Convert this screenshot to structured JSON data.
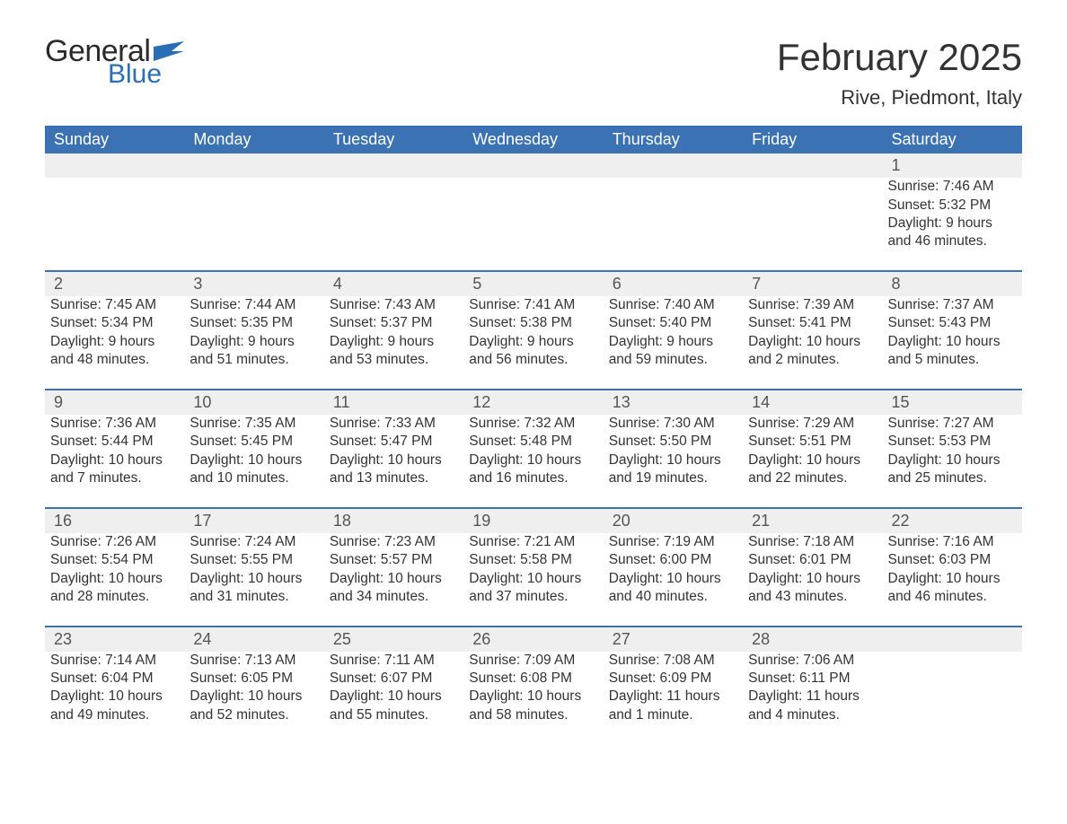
{
  "brand": {
    "word1": "General",
    "word2": "Blue",
    "flag_color": "#2a6fb5"
  },
  "title": "February 2025",
  "location": "Rive, Piedmont, Italy",
  "colors": {
    "header_bg": "#3b72b3",
    "header_text": "#ffffff",
    "daynum_bg": "#efefef",
    "row_divider": "#3b72b3",
    "body_text": "#333333",
    "page_bg": "#ffffff"
  },
  "typography": {
    "title_fontsize": 42,
    "location_fontsize": 22,
    "dayheader_fontsize": 18,
    "cell_fontsize": 15.5
  },
  "calendar": {
    "type": "table",
    "day_headers": [
      "Sunday",
      "Monday",
      "Tuesday",
      "Wednesday",
      "Thursday",
      "Friday",
      "Saturday"
    ],
    "weeks": [
      [
        null,
        null,
        null,
        null,
        null,
        null,
        {
          "n": "1",
          "sunrise": "7:46 AM",
          "sunset": "5:32 PM",
          "daylight": "9 hours and 46 minutes."
        }
      ],
      [
        {
          "n": "2",
          "sunrise": "7:45 AM",
          "sunset": "5:34 PM",
          "daylight": "9 hours and 48 minutes."
        },
        {
          "n": "3",
          "sunrise": "7:44 AM",
          "sunset": "5:35 PM",
          "daylight": "9 hours and 51 minutes."
        },
        {
          "n": "4",
          "sunrise": "7:43 AM",
          "sunset": "5:37 PM",
          "daylight": "9 hours and 53 minutes."
        },
        {
          "n": "5",
          "sunrise": "7:41 AM",
          "sunset": "5:38 PM",
          "daylight": "9 hours and 56 minutes."
        },
        {
          "n": "6",
          "sunrise": "7:40 AM",
          "sunset": "5:40 PM",
          "daylight": "9 hours and 59 minutes."
        },
        {
          "n": "7",
          "sunrise": "7:39 AM",
          "sunset": "5:41 PM",
          "daylight": "10 hours and 2 minutes."
        },
        {
          "n": "8",
          "sunrise": "7:37 AM",
          "sunset": "5:43 PM",
          "daylight": "10 hours and 5 minutes."
        }
      ],
      [
        {
          "n": "9",
          "sunrise": "7:36 AM",
          "sunset": "5:44 PM",
          "daylight": "10 hours and 7 minutes."
        },
        {
          "n": "10",
          "sunrise": "7:35 AM",
          "sunset": "5:45 PM",
          "daylight": "10 hours and 10 minutes."
        },
        {
          "n": "11",
          "sunrise": "7:33 AM",
          "sunset": "5:47 PM",
          "daylight": "10 hours and 13 minutes."
        },
        {
          "n": "12",
          "sunrise": "7:32 AM",
          "sunset": "5:48 PM",
          "daylight": "10 hours and 16 minutes."
        },
        {
          "n": "13",
          "sunrise": "7:30 AM",
          "sunset": "5:50 PM",
          "daylight": "10 hours and 19 minutes."
        },
        {
          "n": "14",
          "sunrise": "7:29 AM",
          "sunset": "5:51 PM",
          "daylight": "10 hours and 22 minutes."
        },
        {
          "n": "15",
          "sunrise": "7:27 AM",
          "sunset": "5:53 PM",
          "daylight": "10 hours and 25 minutes."
        }
      ],
      [
        {
          "n": "16",
          "sunrise": "7:26 AM",
          "sunset": "5:54 PM",
          "daylight": "10 hours and 28 minutes."
        },
        {
          "n": "17",
          "sunrise": "7:24 AM",
          "sunset": "5:55 PM",
          "daylight": "10 hours and 31 minutes."
        },
        {
          "n": "18",
          "sunrise": "7:23 AM",
          "sunset": "5:57 PM",
          "daylight": "10 hours and 34 minutes."
        },
        {
          "n": "19",
          "sunrise": "7:21 AM",
          "sunset": "5:58 PM",
          "daylight": "10 hours and 37 minutes."
        },
        {
          "n": "20",
          "sunrise": "7:19 AM",
          "sunset": "6:00 PM",
          "daylight": "10 hours and 40 minutes."
        },
        {
          "n": "21",
          "sunrise": "7:18 AM",
          "sunset": "6:01 PM",
          "daylight": "10 hours and 43 minutes."
        },
        {
          "n": "22",
          "sunrise": "7:16 AM",
          "sunset": "6:03 PM",
          "daylight": "10 hours and 46 minutes."
        }
      ],
      [
        {
          "n": "23",
          "sunrise": "7:14 AM",
          "sunset": "6:04 PM",
          "daylight": "10 hours and 49 minutes."
        },
        {
          "n": "24",
          "sunrise": "7:13 AM",
          "sunset": "6:05 PM",
          "daylight": "10 hours and 52 minutes."
        },
        {
          "n": "25",
          "sunrise": "7:11 AM",
          "sunset": "6:07 PM",
          "daylight": "10 hours and 55 minutes."
        },
        {
          "n": "26",
          "sunrise": "7:09 AM",
          "sunset": "6:08 PM",
          "daylight": "10 hours and 58 minutes."
        },
        {
          "n": "27",
          "sunrise": "7:08 AM",
          "sunset": "6:09 PM",
          "daylight": "11 hours and 1 minute."
        },
        {
          "n": "28",
          "sunrise": "7:06 AM",
          "sunset": "6:11 PM",
          "daylight": "11 hours and 4 minutes."
        },
        null
      ]
    ],
    "labels": {
      "sunrise": "Sunrise: ",
      "sunset": "Sunset: ",
      "daylight": "Daylight: "
    }
  }
}
